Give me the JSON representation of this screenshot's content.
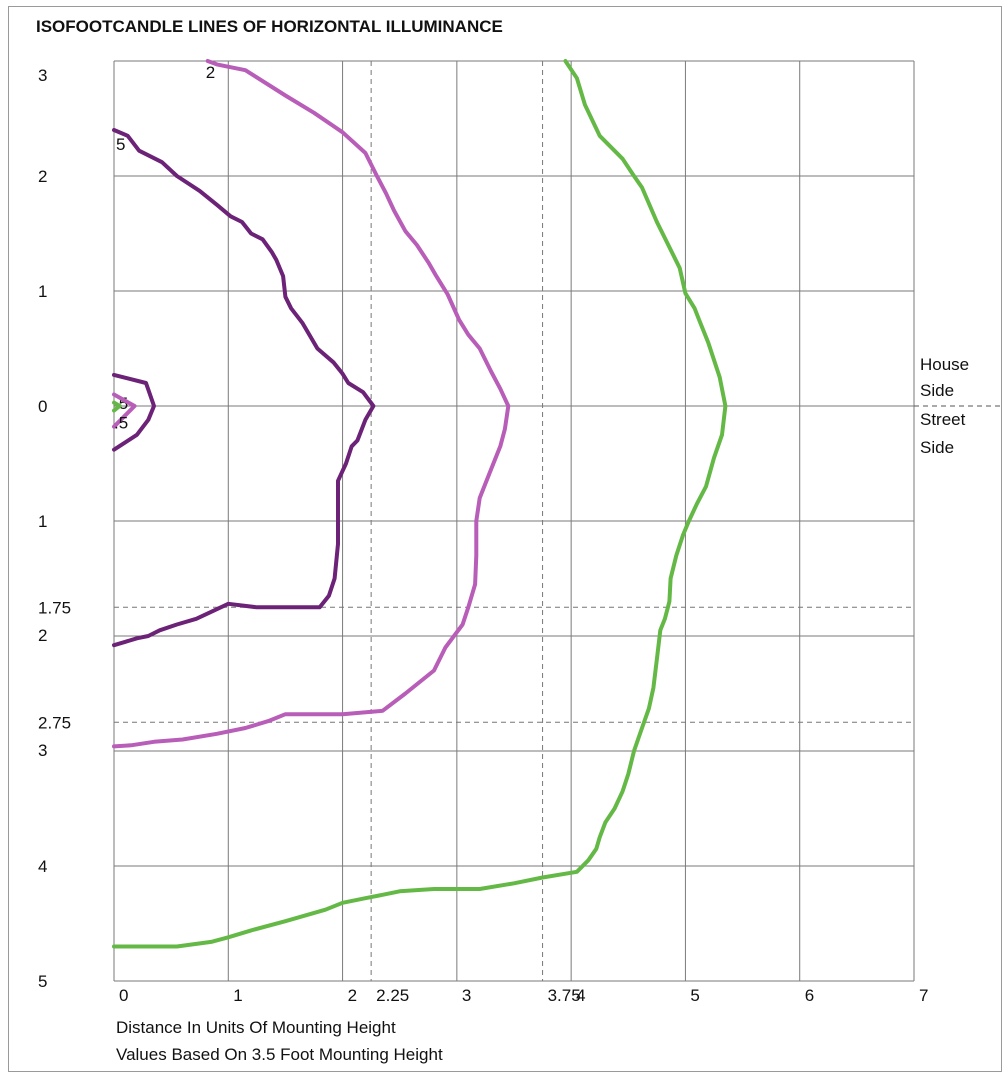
{
  "chart_data": {
    "type": "line",
    "title": "ISOFOOTCANDLE LINES OF HORIZONTAL ILLUMINANCE",
    "x_axis": {
      "range": [
        0,
        7
      ],
      "ticks": [
        {
          "value": 0,
          "label": "0"
        },
        {
          "value": 1,
          "label": "1"
        },
        {
          "value": 2,
          "label": "2"
        },
        {
          "value": 2.25,
          "label": "2.25",
          "dashed": true
        },
        {
          "value": 3,
          "label": "3"
        },
        {
          "value": 3.75,
          "label": "3.75",
          "dashed": true
        },
        {
          "value": 4,
          "label": "4"
        },
        {
          "value": 5,
          "label": "5"
        },
        {
          "value": 6,
          "label": "6"
        },
        {
          "value": 7,
          "label": "7"
        }
      ]
    },
    "y_axis": {
      "range": [
        -3,
        5
      ],
      "ticks": [
        {
          "value": -3,
          "label": "3"
        },
        {
          "value": -2,
          "label": "2"
        },
        {
          "value": -1,
          "label": "1"
        },
        {
          "value": 0,
          "label": "0"
        },
        {
          "value": 1,
          "label": "1"
        },
        {
          "value": 1.75,
          "label": "1.75",
          "dashed": true
        },
        {
          "value": 2,
          "label": "2"
        },
        {
          "value": 2.75,
          "label": "2.75",
          "dashed": true
        },
        {
          "value": 3,
          "label": "3"
        },
        {
          "value": 4,
          "label": "4"
        },
        {
          "value": 5,
          "label": "5"
        }
      ]
    },
    "side_labels": {
      "house_line1": "House",
      "house_line2": "Side",
      "street_line1": "Street",
      "street_line2": "Side"
    },
    "footnote_line1": "Distance In Units Of Mounting Height",
    "footnote_line2": "Values Based On 3.5 Foot Mounting Height",
    "series": [
      {
        "label": ".5",
        "color": "#6b2277",
        "points": [
          [
            0,
            -0.27
          ],
          [
            0.28,
            -0.2
          ],
          [
            0.35,
            0
          ],
          [
            0.3,
            0.12
          ],
          [
            0.2,
            0.25
          ],
          [
            0,
            0.38
          ]
        ]
      },
      {
        "label": ".5",
        "color": "#b85db8",
        "points": [
          [
            0,
            -0.1
          ],
          [
            0.18,
            0
          ],
          [
            0,
            0.18
          ]
        ]
      },
      {
        "label": "",
        "color": "#64b946",
        "points": [
          [
            0,
            -0.03
          ],
          [
            0.05,
            0
          ],
          [
            0,
            0.04
          ]
        ]
      },
      {
        "label": "5",
        "color": "#6b2277",
        "points": [
          [
            0,
            -2.4
          ],
          [
            0.12,
            -2.35
          ],
          [
            0.22,
            -2.22
          ],
          [
            0.42,
            -2.12
          ],
          [
            0.55,
            -2.0
          ],
          [
            0.75,
            -1.87
          ],
          [
            0.9,
            -1.75
          ],
          [
            1.02,
            -1.65
          ],
          [
            1.12,
            -1.6
          ],
          [
            1.2,
            -1.5
          ],
          [
            1.3,
            -1.45
          ],
          [
            1.38,
            -1.34
          ],
          [
            1.42,
            -1.27
          ],
          [
            1.48,
            -1.13
          ],
          [
            1.5,
            -0.95
          ],
          [
            1.55,
            -0.85
          ],
          [
            1.65,
            -0.72
          ],
          [
            1.78,
            -0.5
          ],
          [
            1.92,
            -0.38
          ],
          [
            2.0,
            -0.28
          ],
          [
            2.05,
            -0.2
          ],
          [
            2.18,
            -0.12
          ],
          [
            2.27,
            0
          ],
          [
            2.2,
            0.12
          ],
          [
            2.13,
            0.3
          ],
          [
            2.08,
            0.35
          ],
          [
            2.03,
            0.5
          ],
          [
            1.96,
            0.65
          ],
          [
            1.96,
            0.85
          ],
          [
            1.96,
            1.2
          ],
          [
            1.93,
            1.5
          ],
          [
            1.88,
            1.65
          ],
          [
            1.8,
            1.75
          ],
          [
            1.5,
            1.75
          ],
          [
            1.25,
            1.75
          ],
          [
            1.0,
            1.72
          ],
          [
            0.72,
            1.85
          ],
          [
            0.55,
            1.9
          ],
          [
            0.4,
            1.95
          ],
          [
            0.3,
            2.0
          ],
          [
            0.2,
            2.02
          ],
          [
            0.1,
            2.05
          ],
          [
            0,
            2.08
          ]
        ]
      },
      {
        "label": "2",
        "color": "#b85db8",
        "points": [
          [
            0.82,
            -3.0
          ],
          [
            0.9,
            -2.97
          ],
          [
            1.15,
            -2.92
          ],
          [
            1.5,
            -2.7
          ],
          [
            1.75,
            -2.55
          ],
          [
            2.0,
            -2.38
          ],
          [
            2.2,
            -2.2
          ],
          [
            2.3,
            -2.0
          ],
          [
            2.38,
            -1.85
          ],
          [
            2.45,
            -1.7
          ],
          [
            2.55,
            -1.52
          ],
          [
            2.65,
            -1.4
          ],
          [
            2.75,
            -1.25
          ],
          [
            2.82,
            -1.13
          ],
          [
            2.92,
            -0.97
          ],
          [
            3.02,
            -0.75
          ],
          [
            3.1,
            -0.62
          ],
          [
            3.2,
            -0.5
          ],
          [
            3.3,
            -0.3
          ],
          [
            3.38,
            -0.15
          ],
          [
            3.45,
            0
          ],
          [
            3.42,
            0.2
          ],
          [
            3.38,
            0.35
          ],
          [
            3.3,
            0.55
          ],
          [
            3.2,
            0.8
          ],
          [
            3.17,
            1.0
          ],
          [
            3.17,
            1.3
          ],
          [
            3.16,
            1.55
          ],
          [
            3.1,
            1.75
          ],
          [
            3.05,
            1.9
          ],
          [
            2.9,
            2.1
          ],
          [
            2.8,
            2.3
          ],
          [
            2.55,
            2.5
          ],
          [
            2.35,
            2.65
          ],
          [
            2.0,
            2.68
          ],
          [
            1.5,
            2.68
          ],
          [
            1.35,
            2.74
          ],
          [
            1.15,
            2.8
          ],
          [
            0.9,
            2.85
          ],
          [
            0.6,
            2.9
          ],
          [
            0.35,
            2.92
          ],
          [
            0.15,
            2.95
          ],
          [
            0,
            2.96
          ]
        ]
      },
      {
        "label": "",
        "color": "#64b946",
        "points": [
          [
            3.95,
            -3.0
          ],
          [
            4.05,
            -2.85
          ],
          [
            4.12,
            -2.62
          ],
          [
            4.25,
            -2.35
          ],
          [
            4.45,
            -2.15
          ],
          [
            4.55,
            -2.0
          ],
          [
            4.62,
            -1.9
          ],
          [
            4.75,
            -1.6
          ],
          [
            4.85,
            -1.4
          ],
          [
            4.95,
            -1.2
          ],
          [
            5.0,
            -0.98
          ],
          [
            5.08,
            -0.85
          ],
          [
            5.12,
            -0.75
          ],
          [
            5.2,
            -0.55
          ],
          [
            5.25,
            -0.4
          ],
          [
            5.3,
            -0.25
          ],
          [
            5.35,
            0
          ],
          [
            5.32,
            0.25
          ],
          [
            5.25,
            0.45
          ],
          [
            5.18,
            0.7
          ],
          [
            5.1,
            0.85
          ],
          [
            5.03,
            1.0
          ],
          [
            4.98,
            1.12
          ],
          [
            4.92,
            1.3
          ],
          [
            4.87,
            1.5
          ],
          [
            4.86,
            1.7
          ],
          [
            4.82,
            1.85
          ],
          [
            4.78,
            1.95
          ],
          [
            4.75,
            2.2
          ],
          [
            4.72,
            2.45
          ],
          [
            4.68,
            2.63
          ],
          [
            4.62,
            2.8
          ],
          [
            4.55,
            3.0
          ],
          [
            4.5,
            3.2
          ],
          [
            4.45,
            3.35
          ],
          [
            4.38,
            3.5
          ],
          [
            4.3,
            3.62
          ],
          [
            4.25,
            3.75
          ],
          [
            4.22,
            3.85
          ],
          [
            4.15,
            3.95
          ],
          [
            4.05,
            4.05
          ],
          [
            3.75,
            4.1
          ],
          [
            3.5,
            4.15
          ],
          [
            3.2,
            4.2
          ],
          [
            2.8,
            4.2
          ],
          [
            2.5,
            4.22
          ],
          [
            2.35,
            4.25
          ],
          [
            2.2,
            4.28
          ],
          [
            2.0,
            4.32
          ],
          [
            1.85,
            4.38
          ],
          [
            1.5,
            4.48
          ],
          [
            1.2,
            4.56
          ],
          [
            1.0,
            4.62
          ],
          [
            0.85,
            4.66
          ],
          [
            0.55,
            4.7
          ],
          [
            0.3,
            4.7
          ],
          [
            0,
            4.7
          ]
        ]
      }
    ]
  }
}
